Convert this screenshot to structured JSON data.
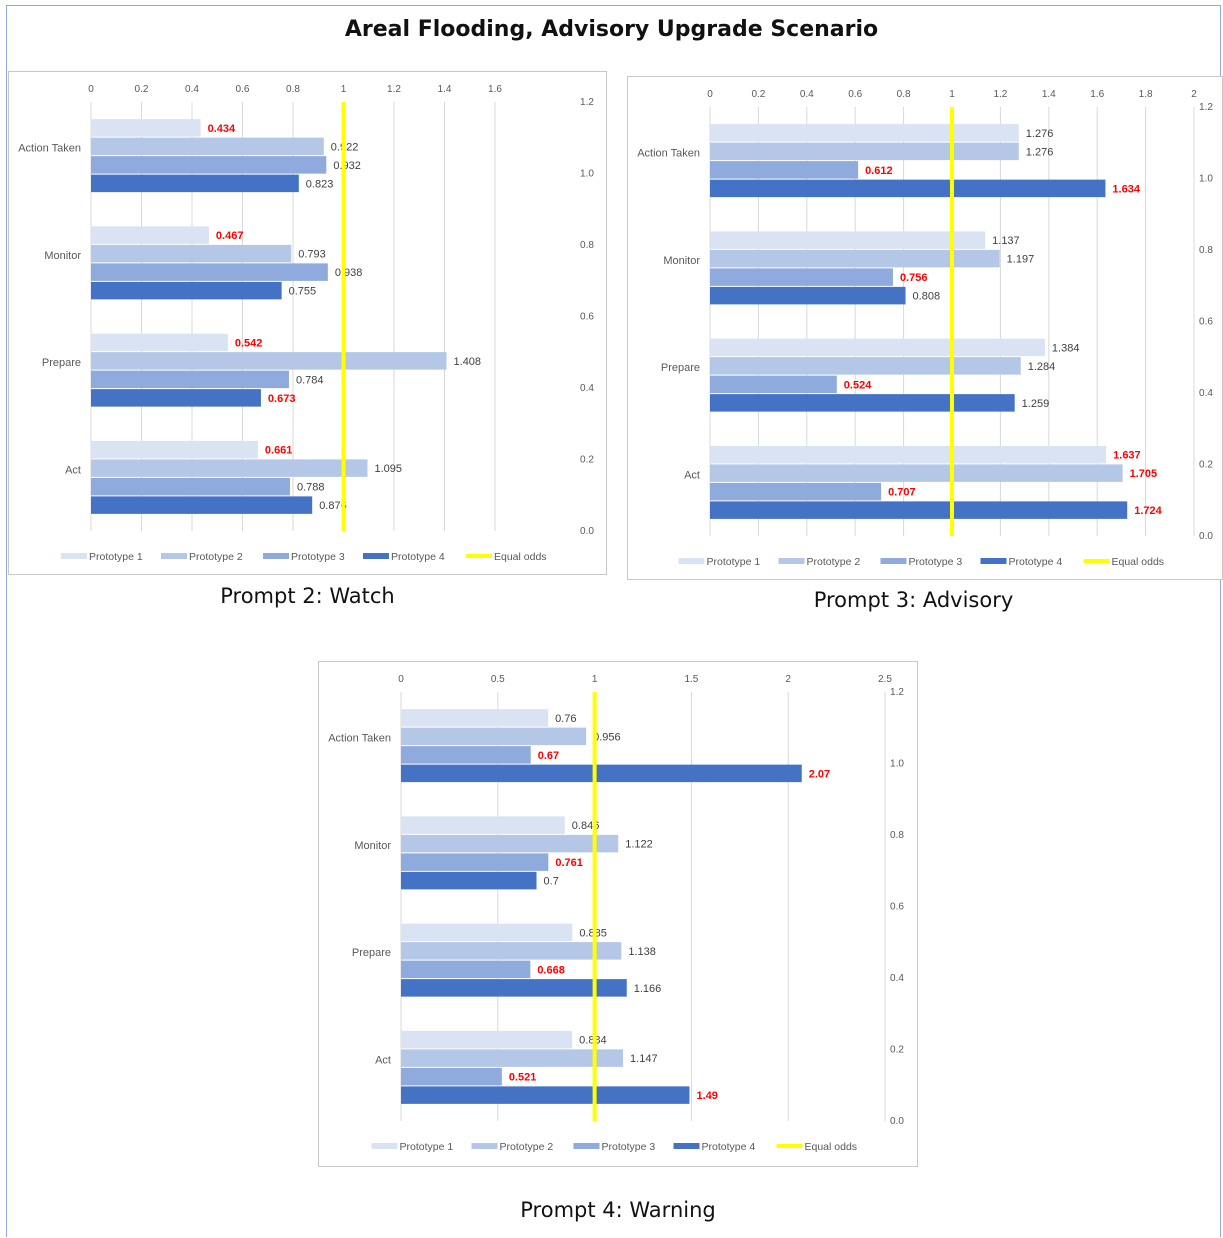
{
  "figure": {
    "title": "Areal Flooding, Advisory Upgrade Scenario"
  },
  "legend": [
    "Prototype 1",
    "Prototype 2",
    "Prototype 3",
    "Prototype 4",
    "Equal odds"
  ],
  "colors": {
    "Prototype 1": "#dae3f3",
    "Prototype 2": "#b4c7e7",
    "Prototype 3": "#8faadc",
    "Prototype 4": "#4472c4",
    "Equal odds": "#ffff00",
    "highlight_label": "#ff0000",
    "normal_label": "#404040"
  },
  "chart_data": [
    {
      "type": "bar",
      "orientation": "horizontal",
      "caption": "Prompt 2: Watch",
      "categories": [
        "Action Taken",
        "Monitor",
        "Prepare",
        "Act"
      ],
      "series": [
        {
          "name": "Prototype 1",
          "values": [
            0.434,
            0.467,
            0.542,
            0.661
          ]
        },
        {
          "name": "Prototype 2",
          "values": [
            0.922,
            0.793,
            1.408,
            1.095
          ]
        },
        {
          "name": "Prototype 3",
          "values": [
            0.932,
            0.938,
            0.784,
            0.788
          ]
        },
        {
          "name": "Prototype 4",
          "values": [
            0.823,
            0.755,
            0.673,
            0.876
          ]
        }
      ],
      "highlighted_labels": [
        [
          0,
          0
        ],
        [
          1,
          0
        ],
        [
          2,
          0
        ],
        [
          2,
          3
        ],
        [
          3,
          0
        ]
      ],
      "reference_line": {
        "name": "Equal odds",
        "x": 1
      },
      "xlim": [
        0,
        1.6
      ],
      "xticks": [
        "0",
        "0.2",
        "0.4",
        "0.6",
        "0.8",
        "1",
        "1.2",
        "1.4",
        "1.6"
      ],
      "secondary_ylim": [
        0,
        1.2
      ],
      "secondary_yticks": [
        "1.2",
        "1.0",
        "0.8",
        "0.6",
        "0.4",
        "0.2",
        "0.0"
      ]
    },
    {
      "type": "bar",
      "orientation": "horizontal",
      "caption": "Prompt 3: Advisory",
      "categories": [
        "Action Taken",
        "Monitor",
        "Prepare",
        "Act"
      ],
      "series": [
        {
          "name": "Prototype 1",
          "values": [
            1.276,
            1.137,
            1.384,
            1.637
          ]
        },
        {
          "name": "Prototype 2",
          "values": [
            1.276,
            1.197,
            1.284,
            1.705
          ]
        },
        {
          "name": "Prototype 3",
          "values": [
            0.612,
            0.756,
            0.524,
            0.707
          ]
        },
        {
          "name": "Prototype 4",
          "values": [
            1.634,
            0.808,
            1.259,
            1.724
          ]
        }
      ],
      "highlighted_labels": [
        [
          0,
          2
        ],
        [
          0,
          3
        ],
        [
          1,
          2
        ],
        [
          2,
          2
        ],
        [
          3,
          0
        ],
        [
          3,
          1
        ],
        [
          3,
          2
        ],
        [
          3,
          3
        ]
      ],
      "reference_line": {
        "name": "Equal odds",
        "x": 1
      },
      "xlim": [
        0,
        2
      ],
      "xticks": [
        "0",
        "0.2",
        "0.4",
        "0.6",
        "0.8",
        "1",
        "1.2",
        "1.4",
        "1.6",
        "1.8",
        "2"
      ],
      "secondary_ylim": [
        0,
        1.2
      ],
      "secondary_yticks": [
        "1.2",
        "1.0",
        "0.8",
        "0.6",
        "0.4",
        "0.2",
        "0.0"
      ]
    },
    {
      "type": "bar",
      "orientation": "horizontal",
      "caption": "Prompt 4: Warning",
      "categories": [
        "Action Taken",
        "Monitor",
        "Prepare",
        "Act"
      ],
      "series": [
        {
          "name": "Prototype 1",
          "values": [
            0.76,
            0.846,
            0.885,
            0.884
          ]
        },
        {
          "name": "Prototype 2",
          "values": [
            0.956,
            1.122,
            1.138,
            1.147
          ]
        },
        {
          "name": "Prototype 3",
          "values": [
            0.67,
            0.761,
            0.668,
            0.521
          ]
        },
        {
          "name": "Prototype 4",
          "values": [
            2.07,
            0.7,
            1.166,
            1.49
          ]
        }
      ],
      "highlighted_labels": [
        [
          0,
          2
        ],
        [
          0,
          3
        ],
        [
          1,
          2
        ],
        [
          2,
          2
        ],
        [
          3,
          2
        ],
        [
          3,
          3
        ]
      ],
      "reference_line": {
        "name": "Equal odds",
        "x": 1
      },
      "xlim": [
        0,
        2.5
      ],
      "xticks": [
        "0",
        "0.5",
        "1",
        "1.5",
        "2",
        "2.5"
      ],
      "secondary_ylim": [
        0,
        1.2
      ],
      "secondary_yticks": [
        "1.2",
        "1.0",
        "0.8",
        "0.6",
        "0.4",
        "0.2",
        "0.0"
      ]
    }
  ]
}
